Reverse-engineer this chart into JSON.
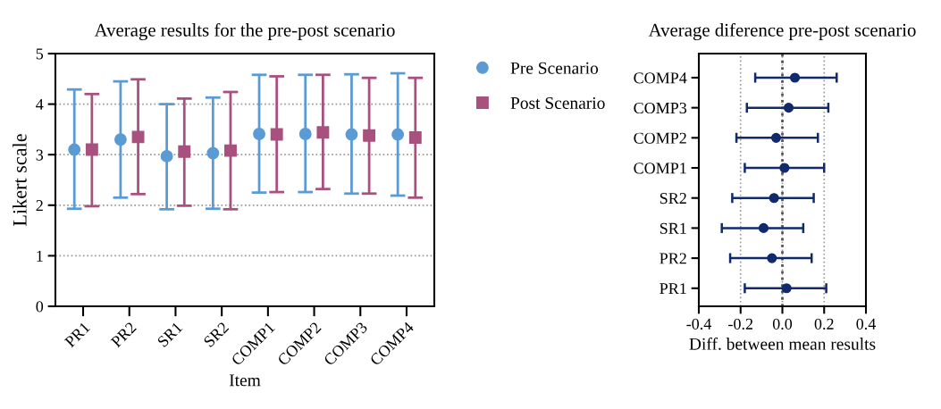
{
  "chart_data": [
    {
      "type": "scatter",
      "title": "Average results for the pre-post scenario",
      "xlabel": "Item",
      "ylabel": "Likert scale",
      "categories": [
        "PR1",
        "PR2",
        "SR1",
        "SR2",
        "COMP1",
        "COMP2",
        "COMP3",
        "COMP4"
      ],
      "series": [
        {
          "name": "Pre Scenario",
          "color": "#5b9bd5",
          "marker": "circle",
          "values": [
            3.1,
            3.3,
            2.97,
            3.03,
            3.41,
            3.41,
            3.4,
            3.4
          ],
          "errors": [
            [
              1.93,
              4.29
            ],
            [
              2.15,
              4.45
            ],
            [
              1.92,
              4.0
            ],
            [
              1.93,
              4.13
            ],
            [
              2.25,
              4.58
            ],
            [
              2.26,
              4.58
            ],
            [
              2.23,
              4.59
            ],
            [
              2.19,
              4.61
            ]
          ]
        },
        {
          "name": "Post Scenario",
          "color": "#a8507e",
          "marker": "square",
          "values": [
            3.1,
            3.35,
            3.06,
            3.08,
            3.4,
            3.44,
            3.38,
            3.34
          ],
          "errors": [
            [
              1.98,
              4.2
            ],
            [
              2.22,
              4.49
            ],
            [
              1.99,
              4.11
            ],
            [
              1.92,
              4.24
            ],
            [
              2.26,
              4.55
            ],
            [
              2.32,
              4.58
            ],
            [
              2.23,
              4.52
            ],
            [
              2.15,
              4.52
            ]
          ]
        }
      ],
      "ylim": [
        0,
        5
      ],
      "yticks": [
        0,
        1,
        2,
        3,
        4,
        5
      ],
      "grid": "y",
      "legend": "right"
    },
    {
      "type": "scatter",
      "orientation": "horizontal",
      "title": "Average diference pre-post scenario",
      "xlabel": "Diff. between mean results",
      "categories": [
        "COMP4",
        "COMP3",
        "COMP2",
        "COMP1",
        "SR2",
        "SR1",
        "PR2",
        "PR1"
      ],
      "color": "#102a6b",
      "marker": "circle",
      "values": [
        0.06,
        0.03,
        -0.03,
        0.01,
        -0.04,
        -0.09,
        -0.05,
        0.02
      ],
      "errors": [
        [
          -0.13,
          0.26
        ],
        [
          -0.17,
          0.22
        ],
        [
          -0.22,
          0.17
        ],
        [
          -0.18,
          0.2
        ],
        [
          -0.24,
          0.15
        ],
        [
          -0.29,
          0.1
        ],
        [
          -0.25,
          0.14
        ],
        [
          -0.18,
          0.21
        ]
      ],
      "xlim": [
        -0.4,
        0.4
      ],
      "xticks": [
        -0.4,
        -0.2,
        {
          "value": 0,
          "label": "0.0"
        },
        0.2,
        0.4
      ],
      "grid": "x",
      "ref_lines": [
        {
          "axis": "x",
          "value": 0,
          "color": "#555555",
          "line_style": "dotted"
        }
      ]
    }
  ]
}
